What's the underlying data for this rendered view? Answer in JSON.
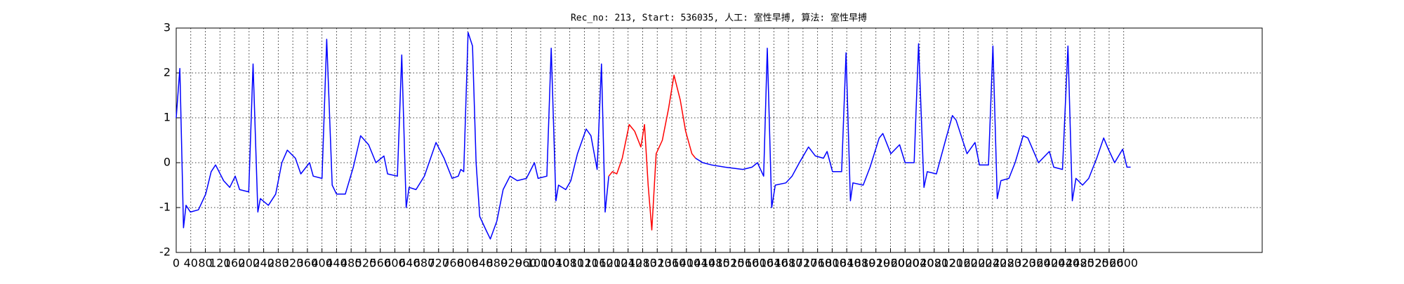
{
  "chart_data": {
    "type": "line",
    "title": "Rec_no: 213, Start: 536035, 人工: 室性早搏, 算法: 室性早搏",
    "xlim": [
      0,
      2980
    ],
    "ylim": [
      -2,
      3
    ],
    "xticks": [
      0,
      40,
      80,
      120,
      160,
      200,
      240,
      280,
      320,
      360,
      400,
      440,
      480,
      520,
      560,
      600,
      640,
      680,
      720,
      760,
      800,
      840,
      880,
      920,
      960,
      1000,
      1040,
      1080,
      1120,
      1160,
      1200,
      1240,
      1280,
      1320,
      1360,
      1400,
      1440,
      1480,
      1520,
      1560,
      1600,
      1640,
      1680,
      1720,
      1760,
      1800,
      1840,
      1880,
      1920,
      1960,
      2000,
      2040,
      2080,
      2120,
      2160,
      2200,
      2240,
      2280,
      2320,
      2360,
      2400,
      2440,
      2480,
      2520,
      2560,
      2600
    ],
    "yticks": [
      -2,
      -1,
      0,
      1,
      2,
      3
    ],
    "grid": true,
    "series": [
      {
        "color": "#0000ff",
        "x": [
          0,
          10,
          20,
          27,
          39,
          61,
          81,
          96,
          108,
          130,
          147,
          162,
          174,
          199,
          211,
          224,
          231,
          253,
          273,
          290,
          305,
          327,
          342,
          366,
          376,
          400,
          413,
          428,
          440,
          464,
          486,
          506,
          528,
          548,
          570,
          580,
          607,
          619,
          631,
          639,
          658,
          681,
          713,
          735,
          757,
          774,
          781,
          789,
          801,
          813,
          823,
          833,
          850,
          862,
          880,
          897,
          916,
          936,
          961,
          983,
          993,
          1017,
          1029,
          1042,
          1049,
          1069,
          1083,
          1101,
          1125,
          1138,
          1155,
          1167,
          1177,
          1187
        ],
        "values": [
          1.0,
          2.1,
          -1.45,
          -0.95,
          -1.1,
          -1.05,
          -0.7,
          -0.2,
          -0.05,
          -0.4,
          -0.55,
          -0.3,
          -0.6,
          -0.65,
          2.2,
          -1.1,
          -0.8,
          -0.95,
          -0.7,
          0.0,
          0.28,
          0.1,
          -0.25,
          0.0,
          -0.3,
          -0.35,
          2.75,
          -0.5,
          -0.7,
          -0.7,
          -0.1,
          0.6,
          0.4,
          0.0,
          0.15,
          -0.25,
          -0.3,
          2.4,
          -1.0,
          -0.55,
          -0.6,
          -0.3,
          0.45,
          0.1,
          -0.35,
          -0.3,
          -0.15,
          -0.2,
          2.9,
          2.6,
          0.0,
          -1.2,
          -1.5,
          -1.7,
          -1.3,
          -0.6,
          -0.3,
          -0.4,
          -0.35,
          0.0,
          -0.35,
          -0.3,
          2.55,
          -0.85,
          -0.5,
          -0.6,
          -0.4,
          0.2,
          0.75,
          0.6,
          -0.15,
          2.2,
          -1.1,
          -0.3
        ]
      },
      {
        "color": "#ff0000",
        "x": [
          1187,
          1197,
          1209,
          1224,
          1243,
          1258,
          1275,
          1285,
          1295,
          1305,
          1317,
          1334,
          1351,
          1366,
          1383,
          1398,
          1415,
          1425
        ],
        "values": [
          -0.3,
          -0.2,
          -0.25,
          0.1,
          0.85,
          0.7,
          0.35,
          0.85,
          -0.5,
          -1.5,
          0.2,
          0.5,
          1.2,
          1.95,
          1.4,
          0.7,
          0.2,
          0.1
        ]
      },
      {
        "color": "#0000ff",
        "x": [
          1425,
          1445,
          1469,
          1506,
          1555,
          1580,
          1595,
          1612,
          1622,
          1634,
          1644,
          1673,
          1690,
          1710,
          1735,
          1754,
          1776,
          1786,
          1801,
          1826,
          1838,
          1850,
          1857,
          1885,
          1904,
          1929,
          1939,
          1961,
          1985,
          2000,
          2025,
          2037,
          2052,
          2061,
          2086,
          2111,
          2130,
          2140,
          2170,
          2192,
          2204,
          2229,
          2241,
          2253,
          2263,
          2285,
          2302,
          2324,
          2337,
          2366,
          2396,
          2408,
          2432,
          2447,
          2459,
          2469,
          2487,
          2504,
          2526,
          2545,
          2558,
          2575,
          2597,
          2609,
          2619
        ],
        "values": [
          0.1,
          0.0,
          -0.05,
          -0.1,
          -0.15,
          -0.1,
          0.0,
          -0.3,
          2.55,
          -1.0,
          -0.5,
          -0.45,
          -0.3,
          0.0,
          0.35,
          0.15,
          0.1,
          0.25,
          -0.2,
          -0.2,
          2.45,
          -0.85,
          -0.45,
          -0.5,
          -0.1,
          0.55,
          0.65,
          0.2,
          0.4,
          0.0,
          0.0,
          2.65,
          -0.55,
          -0.2,
          -0.25,
          0.5,
          1.05,
          0.95,
          0.2,
          0.45,
          -0.05,
          -0.05,
          2.6,
          -0.8,
          -0.4,
          -0.35,
          0.0,
          0.6,
          0.55,
          0.0,
          0.25,
          -0.1,
          -0.15,
          2.6,
          -0.85,
          -0.35,
          -0.5,
          -0.35,
          0.1,
          0.55,
          0.3,
          0.0,
          0.3,
          -0.1,
          -0.1
        ]
      }
    ]
  }
}
